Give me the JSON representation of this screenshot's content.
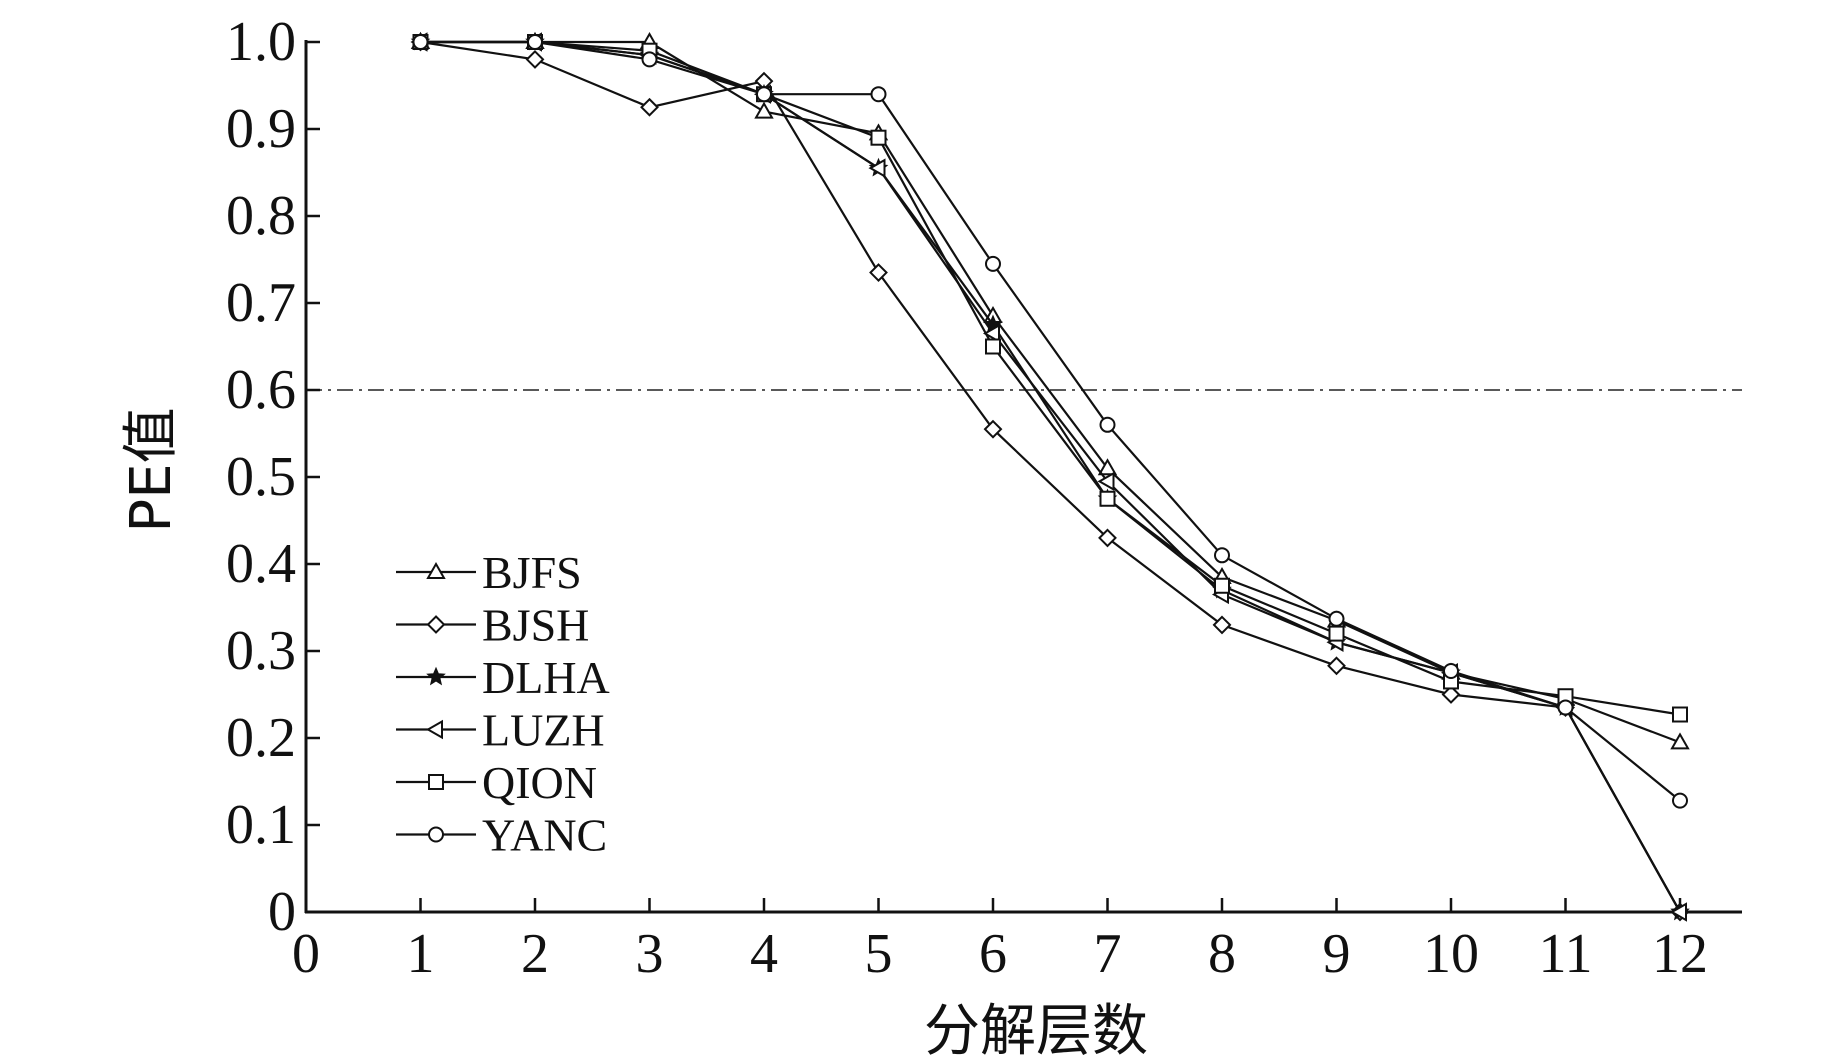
{
  "chart_data": {
    "type": "line",
    "title": "",
    "xlabel": "分解层数",
    "ylabel": "PE值",
    "xlim": [
      0,
      12.5
    ],
    "ylim": [
      0,
      1.0
    ],
    "x_ticks": [
      "0",
      "1",
      "2",
      "3",
      "4",
      "5",
      "6",
      "7",
      "8",
      "9",
      "10",
      "11",
      "12"
    ],
    "y_ticks": [
      "0",
      "0.1",
      "0.2",
      "0.3",
      "0.4",
      "0.5",
      "0.6",
      "0.7",
      "0.8",
      "0.9",
      "1.0"
    ],
    "threshold": 0.6,
    "legend_position": "lower-left",
    "x": [
      1,
      2,
      3,
      4,
      5,
      6,
      7,
      8,
      9,
      10,
      11,
      12
    ],
    "series": [
      {
        "name": "BJFS",
        "marker": "triangle-up",
        "values": [
          1.0,
          1.0,
          1.0,
          0.92,
          0.895,
          0.685,
          0.51,
          0.385,
          0.335,
          0.275,
          0.245,
          0.195
        ]
      },
      {
        "name": "BJSH",
        "marker": "diamond",
        "values": [
          1.0,
          0.98,
          0.925,
          0.955,
          0.735,
          0.555,
          0.43,
          0.33,
          0.283,
          0.25,
          0.235,
          0.0
        ]
      },
      {
        "name": "DLHA",
        "marker": "star",
        "values": [
          1.0,
          1.0,
          0.985,
          0.94,
          0.855,
          0.675,
          0.475,
          0.37,
          0.31,
          0.275,
          0.235,
          0.0
        ]
      },
      {
        "name": "LUZH",
        "marker": "triangle-left",
        "values": [
          1.0,
          1.0,
          0.985,
          0.94,
          0.855,
          0.665,
          0.495,
          0.365,
          0.31,
          0.275,
          0.235,
          0.0
        ]
      },
      {
        "name": "QION",
        "marker": "square",
        "values": [
          1.0,
          1.0,
          0.99,
          0.94,
          0.89,
          0.65,
          0.475,
          0.375,
          0.32,
          0.265,
          0.248,
          0.227
        ]
      },
      {
        "name": "YANC",
        "marker": "circle",
        "values": [
          1.0,
          1.0,
          0.98,
          0.94,
          0.94,
          0.745,
          0.56,
          0.41,
          0.337,
          0.277,
          0.235,
          0.128
        ]
      }
    ]
  }
}
